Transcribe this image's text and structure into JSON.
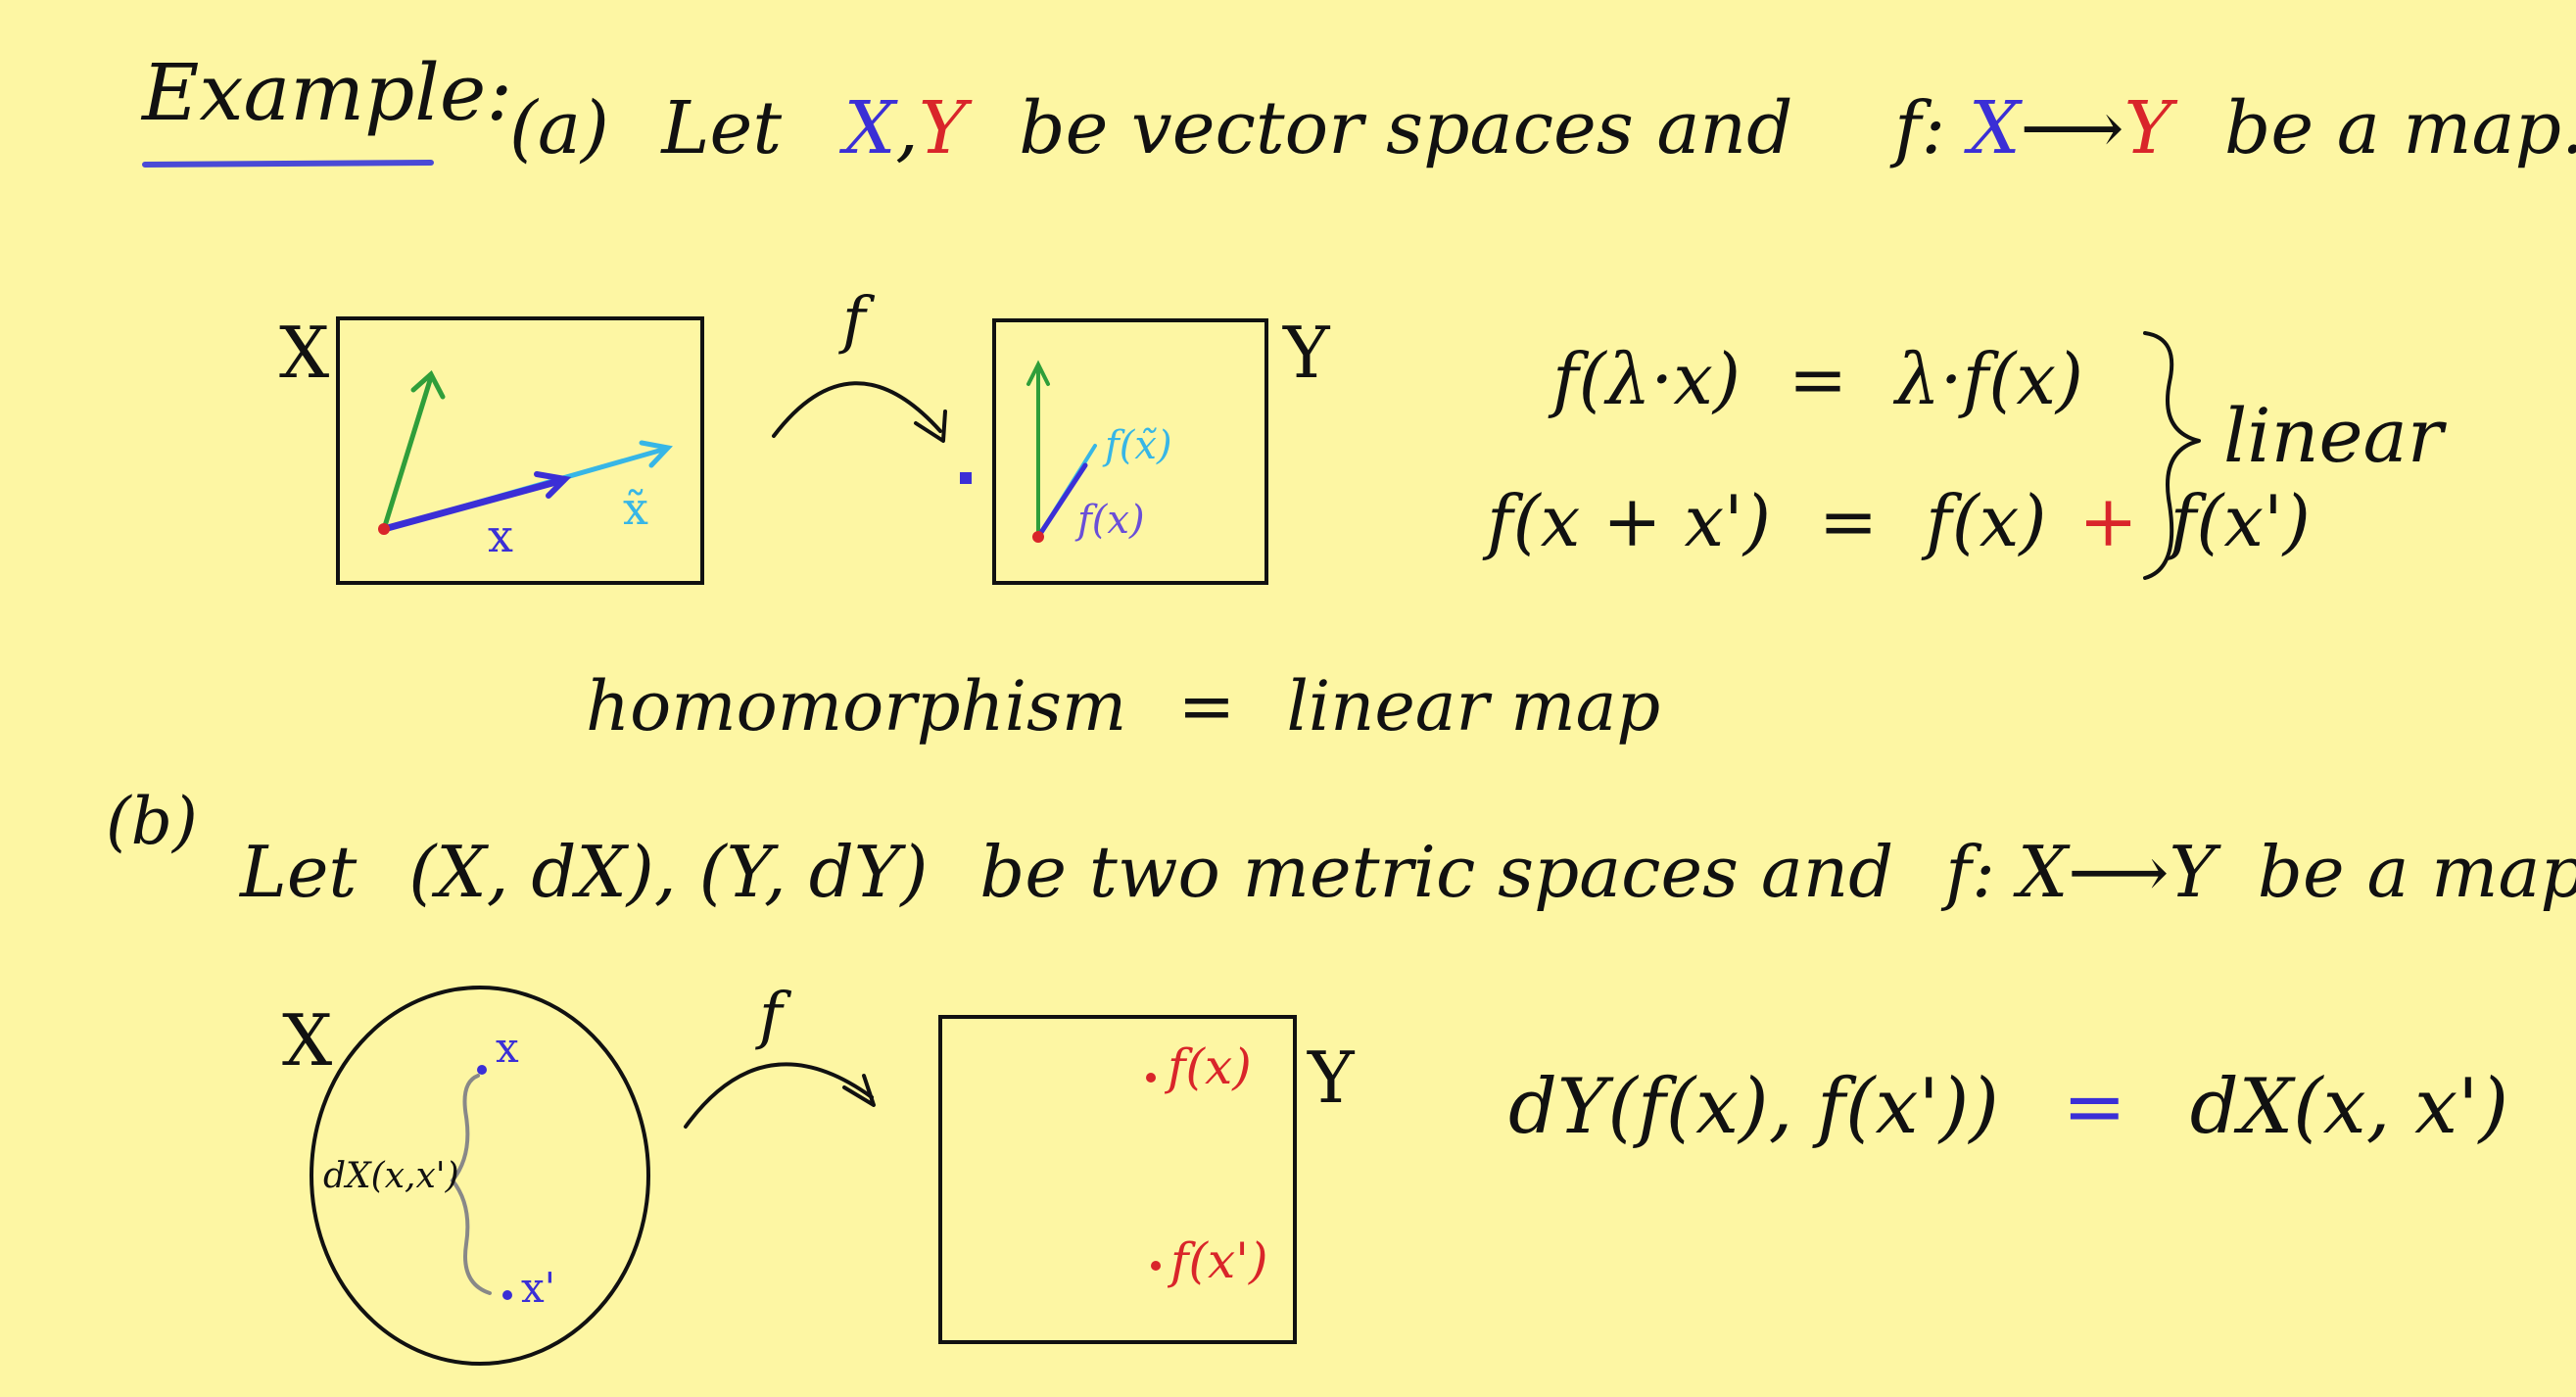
{
  "colors": {
    "background": "#fdf6a3",
    "ink": "#111111",
    "blue": "#3b2fd6",
    "red": "#d9252a",
    "green": "#2f9e3a",
    "cyan": "#37b6e6",
    "purple": "#6a4fd8",
    "underline": "#4a4ad6"
  },
  "header": {
    "example_label": "Example:",
    "part_a_marker": "(a)",
    "let": "Let",
    "X": "X",
    "comma": ",",
    "Y": "Y",
    "rest": "be vector spaces and",
    "f_colon": "f:",
    "arrow": "⟶",
    "tail": "be a map."
  },
  "diagram_a": {
    "space_X": "X",
    "space_Y": "Y",
    "map_f": "f",
    "vec_x": "x",
    "vec_x_tilde": "x̃",
    "img_fx": "f(x)",
    "img_fx_tilde": "f(x̃)"
  },
  "linearity": {
    "eq1_left": "f(λ·x)",
    "eq1_eq": "=",
    "eq1_right": "λ·f(x)",
    "eq2_left": "f(x + x')",
    "eq2_eq": "=",
    "eq2_a": "f(x)",
    "eq2_plus": "+",
    "eq2_b": "f(x')",
    "brace": "}",
    "label": "linear"
  },
  "homomorphism": {
    "left": "homomorphism",
    "eq": "=",
    "right": "linear map"
  },
  "part_b": {
    "marker": "(b)",
    "let": "Let",
    "spaces": "(X, dX), (Y, dY)",
    "rest": "be two metric spaces and",
    "f_colon": "f:",
    "X": "X",
    "arrow": "⟶",
    "Y": "Y",
    "tail": "be a map."
  },
  "diagram_b": {
    "space_X": "X",
    "space_Y": "Y",
    "map_f": "f",
    "pt_x": "x",
    "pt_x_prime": "x'",
    "distance": "dX(x,x')",
    "img_fx": "f(x)",
    "img_fx_prime": "f(x')"
  },
  "isometry": {
    "left": "dY(f(x), f(x'))",
    "eq": "=",
    "right": "dX(x, x')"
  }
}
